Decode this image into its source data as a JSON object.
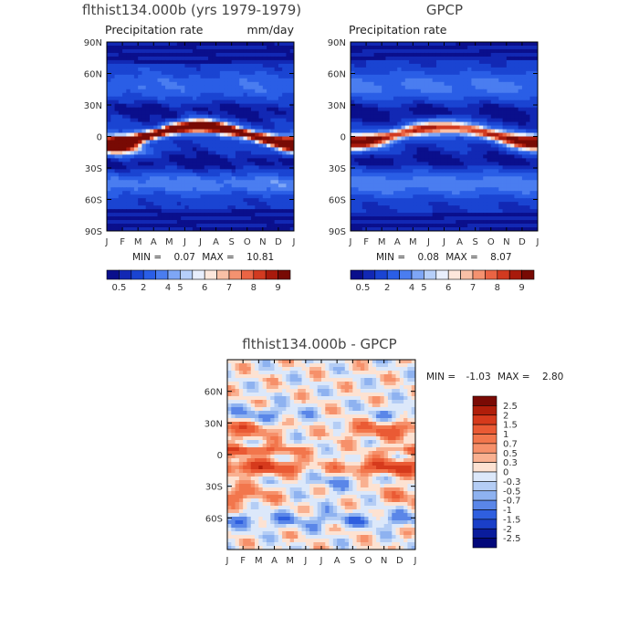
{
  "chart_data": [
    {
      "type": "heatmap",
      "title": "flthist134.000b (yrs 1979-1979)",
      "subtitle_left": "Precipitation rate",
      "subtitle_right": "mm/day",
      "x_ticks": [
        "J",
        "F",
        "M",
        "A",
        "M",
        "J",
        "J",
        "A",
        "S",
        "O",
        "N",
        "D",
        "J"
      ],
      "y_ticks": [
        "90N",
        "60N",
        "30N",
        "0",
        "30S",
        "60S",
        "90S"
      ],
      "stats": {
        "min_label": "MIN =",
        "min": "0.07",
        "max_label": "MAX =",
        "max": "10.81"
      },
      "colorbar_labels": [
        "0.5",
        "2",
        "4",
        "5",
        "6",
        "7",
        "8",
        "9"
      ],
      "palette": [
        "#0a0f8c",
        "#1228b4",
        "#1a44d2",
        "#2a5ee6",
        "#4a7df0",
        "#7ea6f6",
        "#b6cffa",
        "#e8eefc",
        "#fde7dc",
        "#f9c0a6",
        "#f49270",
        "#ea6444",
        "#d23a20",
        "#a81a0c",
        "#780a04"
      ]
    },
    {
      "type": "heatmap",
      "title": "GPCP",
      "subtitle_left": "Precipitation rate",
      "x_ticks": [
        "J",
        "F",
        "M",
        "A",
        "M",
        "J",
        "J",
        "A",
        "S",
        "O",
        "N",
        "D",
        "J"
      ],
      "y_ticks": [
        "90N",
        "60N",
        "30N",
        "0",
        "30S",
        "60S",
        "90S"
      ],
      "stats": {
        "min_label": "MIN =",
        "min": "0.08",
        "max_label": "MAX =",
        "max": "8.07"
      },
      "colorbar_labels": [
        "0.5",
        "2",
        "4",
        "5",
        "6",
        "7",
        "8",
        "9"
      ],
      "palette": [
        "#0a0f8c",
        "#1228b4",
        "#1a44d2",
        "#2a5ee6",
        "#4a7df0",
        "#7ea6f6",
        "#b6cffa",
        "#e8eefc",
        "#fde7dc",
        "#f9c0a6",
        "#f49270",
        "#ea6444",
        "#d23a20",
        "#a81a0c",
        "#780a04"
      ]
    },
    {
      "type": "heatmap",
      "title": "flthist134.000b - GPCP",
      "x_ticks": [
        "J",
        "F",
        "M",
        "A",
        "M",
        "J",
        "J",
        "A",
        "S",
        "O",
        "N",
        "D",
        "J"
      ],
      "y_ticks": [
        "60N",
        "30N",
        "0",
        "30S",
        "60S"
      ],
      "stats": {
        "min_label": "MIN =",
        "min": "-1.03",
        "max_label": "MAX =",
        "max": "2.80"
      },
      "colorbar_labels": [
        "2.5",
        "2",
        "1.5",
        "1",
        "0.7",
        "0.5",
        "0.3",
        "0",
        "-0.3",
        "-0.5",
        "-0.7",
        "-1",
        "-1.5",
        "-2",
        "-2.5"
      ],
      "palette": [
        "#7a0a04",
        "#b01e0a",
        "#d63a1c",
        "#ea5a34",
        "#f2764c",
        "#f6906a",
        "#f9b090",
        "#fde2d2",
        "#dce8fa",
        "#b4cdf5",
        "#8eb2f0",
        "#5a86e8",
        "#2f5fdf",
        "#1a3fc8",
        "#0a1c9c",
        "#02087a"
      ]
    }
  ]
}
